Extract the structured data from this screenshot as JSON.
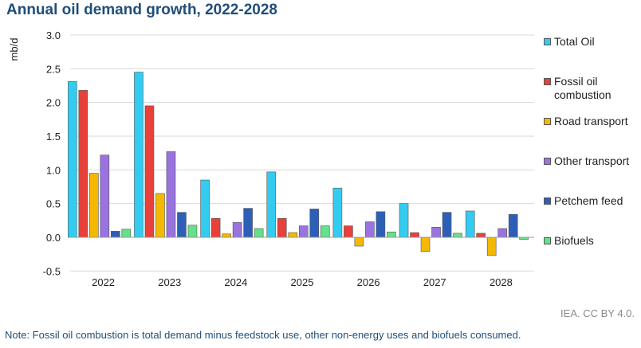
{
  "chart_data": {
    "type": "bar",
    "title": "Annual oil demand growth, 2022-2028",
    "ylabel": "mb/d",
    "xlabel": "",
    "ylim": [
      -0.5,
      3.0
    ],
    "yticks": [
      "3.0",
      "2.5",
      "2.0",
      "1.5",
      "1.0",
      "0.5",
      "0.0",
      "-0.5"
    ],
    "ytick_values": [
      3.0,
      2.5,
      2.0,
      1.5,
      1.0,
      0.5,
      0.0,
      -0.5
    ],
    "grid": true,
    "legend_position": "right",
    "categories": [
      "2022",
      "2023",
      "2024",
      "2025",
      "2026",
      "2027",
      "2028"
    ],
    "series": [
      {
        "name": "Total Oil",
        "color": "#33ccf0",
        "values": [
          2.31,
          2.45,
          0.85,
          0.97,
          0.73,
          0.5,
          0.39
        ]
      },
      {
        "name": "Fossil oil combustion",
        "color": "#e8403a",
        "values": [
          2.18,
          1.95,
          0.28,
          0.28,
          0.17,
          0.07,
          0.06
        ]
      },
      {
        "name": "Road transport",
        "color": "#f5b800",
        "values": [
          0.95,
          0.65,
          0.05,
          0.07,
          -0.13,
          -0.21,
          -0.27
        ]
      },
      {
        "name": "Other transport",
        "color": "#9a73e0",
        "values": [
          1.22,
          1.27,
          0.22,
          0.17,
          0.23,
          0.15,
          0.13
        ]
      },
      {
        "name": "Petchem feed",
        "color": "#2d5fb8",
        "values": [
          0.09,
          0.37,
          0.43,
          0.42,
          0.38,
          0.37,
          0.34
        ]
      },
      {
        "name": "Biofuels",
        "color": "#66e08a",
        "values": [
          0.12,
          0.18,
          0.13,
          0.17,
          0.08,
          0.06,
          -0.03
        ]
      }
    ]
  },
  "legend": [
    {
      "line1": "Total Oil",
      "line2": ""
    },
    {
      "line1": "Fossil oil",
      "line2": "combustion"
    },
    {
      "line1": "Road transport",
      "line2": ""
    },
    {
      "line1": "Other transport",
      "line2": ""
    },
    {
      "line1": "Petchem feed",
      "line2": ""
    },
    {
      "line1": "Biofuels",
      "line2": ""
    }
  ],
  "credit": "IEA. CC BY 4.0.",
  "note": "Note: Fossil oil combustion is total demand minus feedstock use, other non-energy uses and biofuels consumed."
}
